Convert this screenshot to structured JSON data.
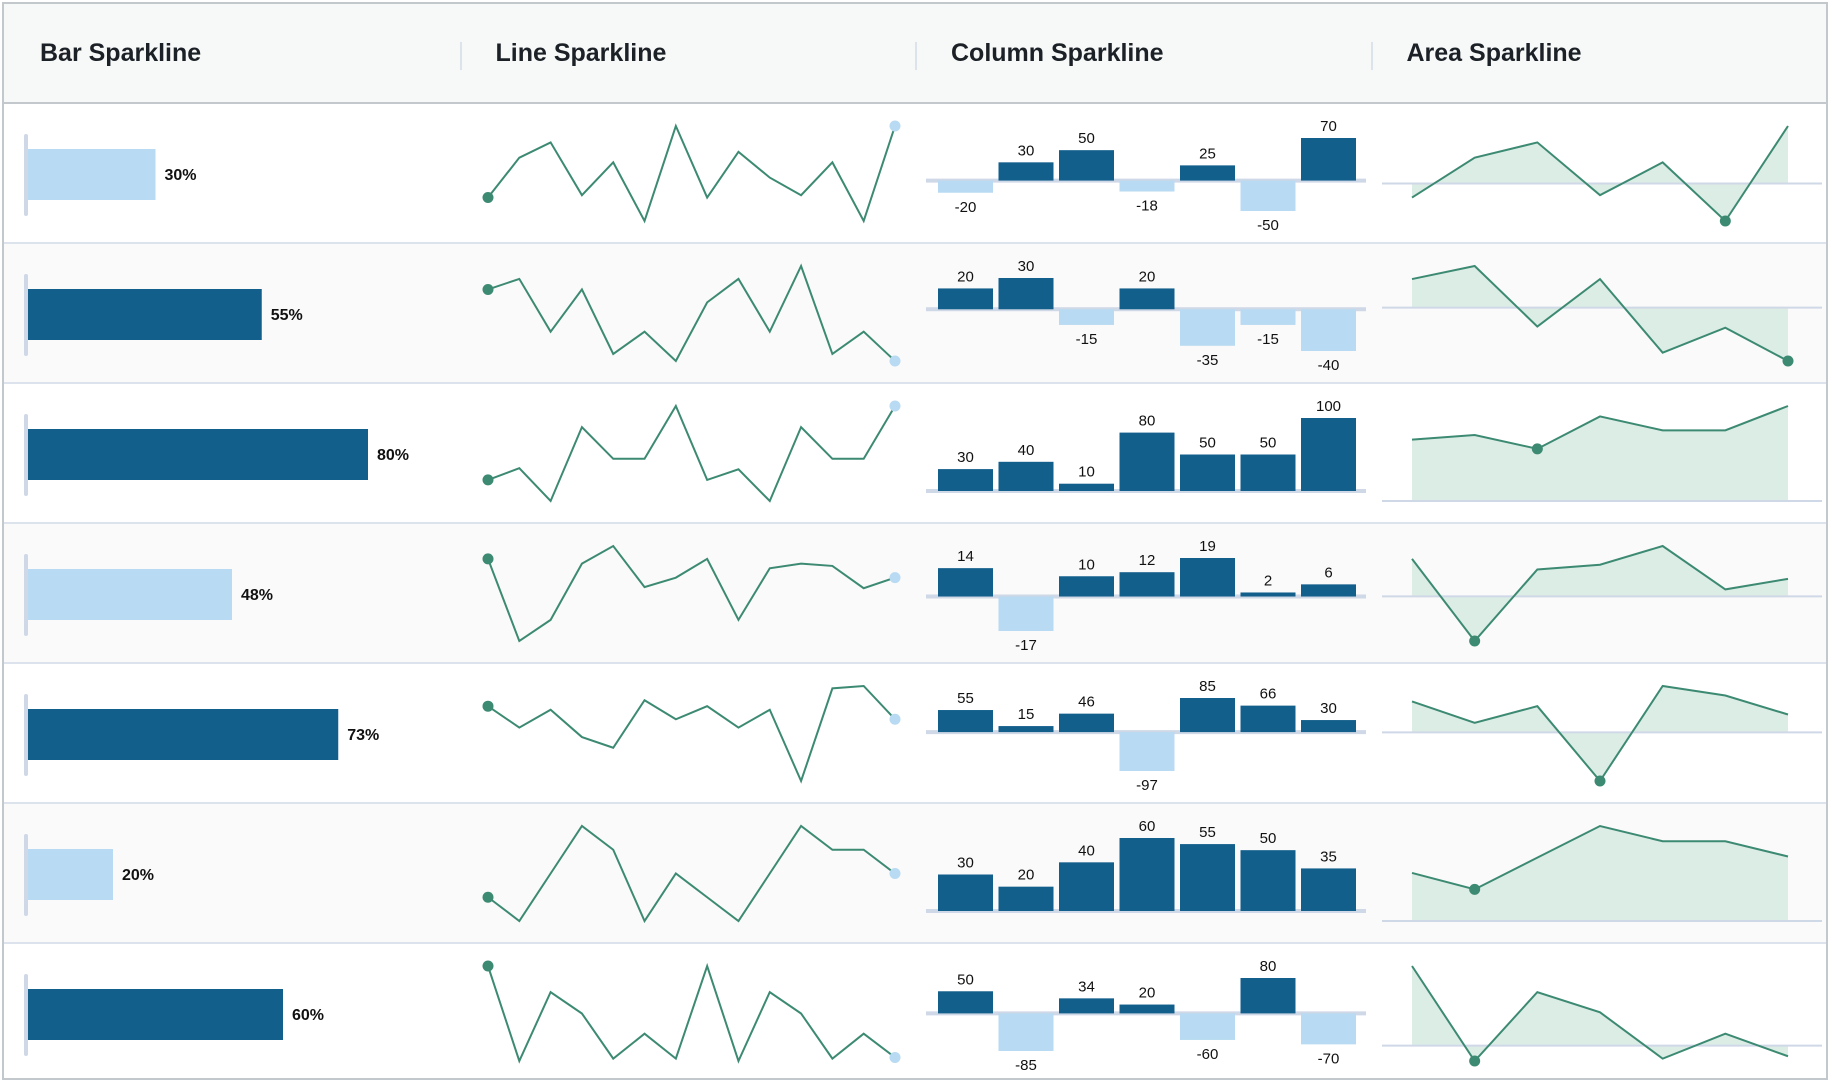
{
  "headers": [
    "Bar Sparkline",
    "Line Sparkline",
    "Column Sparkline",
    "Area Sparkline"
  ],
  "colors": {
    "dark": "#135f8c",
    "light": "#b8daf2",
    "green": "#3d8a73",
    "area_fill": "#dcede6",
    "axis": "#cfd8e6"
  },
  "chart_data": {
    "type": "table",
    "rows": [
      {
        "bar": 30,
        "bar_label": "30%",
        "line": [
          20,
          54,
          67,
          22,
          50,
          0,
          81,
          20,
          59,
          37,
          22,
          50,
          0,
          81
        ],
        "column": [
          -20,
          30,
          50,
          -18,
          25,
          -50,
          70
        ],
        "column_labels": [
          "-20",
          "30",
          "50",
          "-18",
          "25",
          "-50",
          "70"
        ],
        "area": [
          -12,
          22,
          35,
          -10,
          18,
          -32,
          49
        ]
      },
      {
        "bar": 55,
        "bar_label": "55%",
        "line": [
          61,
          70,
          25,
          61,
          6,
          25,
          0,
          50,
          70,
          25,
          81,
          6,
          25,
          0
        ],
        "column": [
          20,
          30,
          -15,
          20,
          -35,
          -15,
          -40
        ],
        "column_labels": [
          "20",
          "30",
          "-15",
          "20",
          "-35",
          "-15",
          "-40"
        ],
        "area": [
          24,
          35,
          -16,
          24,
          -38,
          -17,
          -45
        ]
      },
      {
        "bar": 80,
        "bar_label": "80%",
        "line": [
          18,
          28,
          0,
          63,
          36,
          36,
          81,
          18,
          27,
          0,
          63,
          36,
          36,
          81
        ],
        "column": [
          30,
          40,
          10,
          80,
          50,
          50,
          100
        ],
        "column_labels": [
          "30",
          "40",
          "10",
          "80",
          "50",
          "50",
          "100"
        ],
        "area": [
          53,
          57,
          45,
          73,
          61,
          61,
          82
        ]
      },
      {
        "bar": 48,
        "bar_label": "48%",
        "line": [
          70,
          0,
          18,
          66,
          81,
          46,
          54,
          70,
          18,
          62,
          66,
          64,
          45,
          54
        ],
        "column": [
          14,
          -17,
          10,
          12,
          19,
          2,
          6
        ],
        "column_labels": [
          "14",
          "-17",
          "10",
          "12",
          "19",
          "2",
          "6"
        ],
        "area": [
          32,
          -38,
          23,
          27,
          43,
          6,
          15
        ]
      },
      {
        "bar": 73,
        "bar_label": "73%",
        "line": [
          63,
          45,
          60,
          37,
          28,
          68,
          52,
          63,
          45,
          60,
          0,
          78,
          80,
          52
        ],
        "column": [
          55,
          15,
          46,
          -97,
          85,
          66,
          30
        ],
        "column_labels": [
          "55",
          "15",
          "46",
          "-97",
          "85",
          "66",
          "30"
        ],
        "area": [
          26,
          8,
          22,
          -41,
          39,
          31,
          15
        ]
      },
      {
        "bar": 20,
        "bar_label": "20%",
        "line": [
          20,
          0,
          40,
          80,
          60,
          0,
          40,
          20,
          0,
          40,
          80,
          60,
          60,
          40
        ],
        "column": [
          30,
          20,
          40,
          60,
          55,
          50,
          35
        ],
        "column_labels": [
          "30",
          "20",
          "40",
          "60",
          "55",
          "50",
          "35"
        ],
        "area": [
          41,
          27,
          54,
          81,
          68,
          68,
          55
        ]
      },
      {
        "bar": 60,
        "bar_label": "60%",
        "line": [
          80,
          0,
          58,
          40,
          2,
          23,
          2,
          80,
          0,
          58,
          40,
          2,
          23,
          3
        ],
        "column": [
          50,
          -85,
          34,
          20,
          -60,
          80,
          -70
        ],
        "column_labels": [
          "50",
          "-85",
          "34",
          "20",
          "-60",
          "80",
          "-70"
        ],
        "area": [
          67,
          -13,
          45,
          28,
          -11,
          10,
          -9
        ]
      }
    ]
  }
}
